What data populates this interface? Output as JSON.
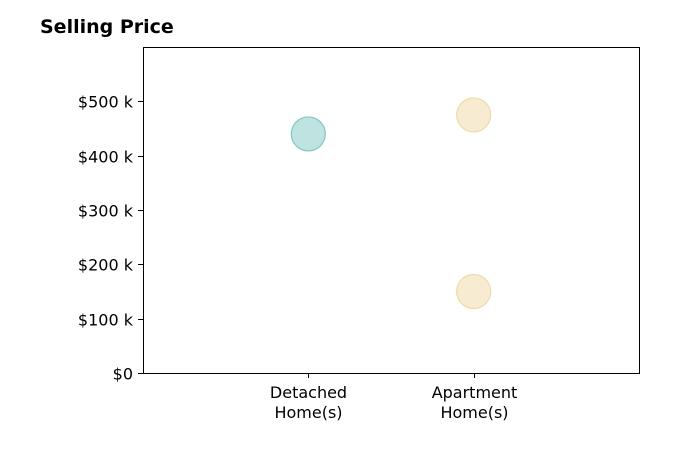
{
  "chart_data": {
    "type": "scatter",
    "title": "Selling Price",
    "xlabel": "",
    "ylabel": "",
    "categories": [
      [
        "Detached",
        "Home(s)"
      ],
      [
        "Apartment",
        "Home(s)"
      ]
    ],
    "ylim": [
      0,
      600000
    ],
    "yticks": [
      {
        "value": 0,
        "label": "$0"
      },
      {
        "value": 100000,
        "label": "$100 k"
      },
      {
        "value": 200000,
        "label": "$200 k"
      },
      {
        "value": 300000,
        "label": "$300 k"
      },
      {
        "value": 400000,
        "label": "$400 k"
      },
      {
        "value": 500000,
        "label": "$500 k"
      }
    ],
    "grid": false,
    "series": [
      {
        "category_index": 0,
        "color": "#7fc7c4",
        "points": [
          440000
        ]
      },
      {
        "category_index": 1,
        "color": "#f0d9a6",
        "points": [
          475000,
          150000
        ]
      }
    ]
  }
}
